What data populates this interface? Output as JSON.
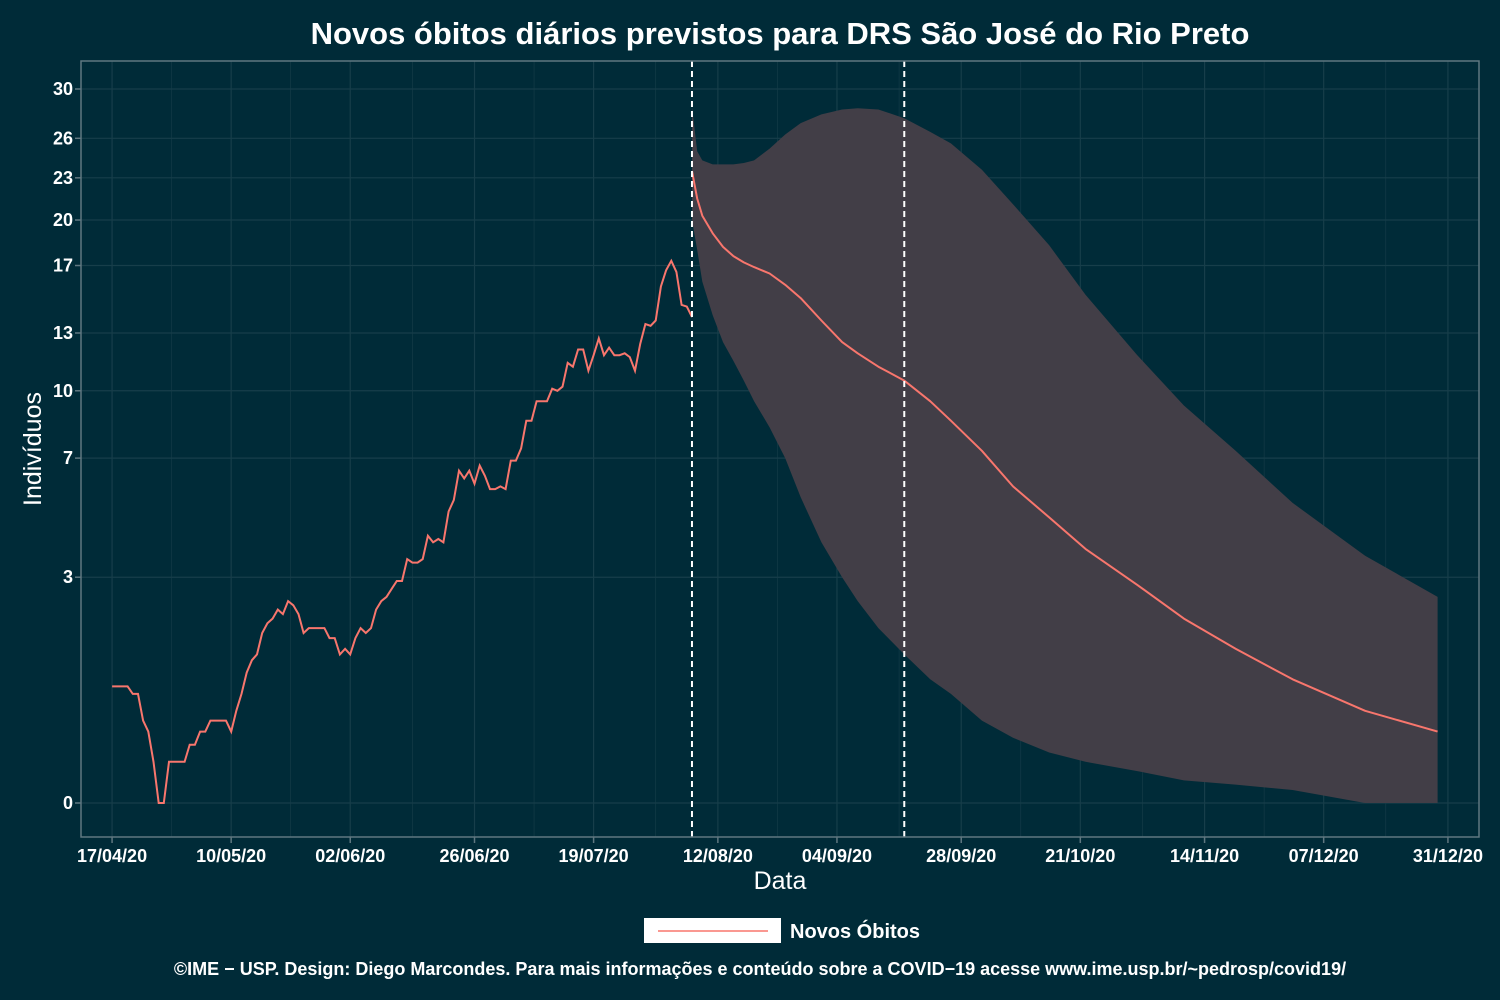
{
  "colors": {
    "background": "#002b38",
    "panel_border": "#5f7780",
    "grid": "#173e4a",
    "band": "#423e47",
    "line": "#f8766d",
    "vline": "#ffffff",
    "legend_key_bg": "#ffffff"
  },
  "chart_data": {
    "type": "line",
    "title": "Novos óbitos diários previstos para DRS São José do Rio Preto",
    "xlabel": "Data",
    "ylabel": "Indivíduos",
    "x_ticks": [
      "17/04/20",
      "10/05/20",
      "02/06/20",
      "26/06/20",
      "19/07/20",
      "12/08/20",
      "04/09/20",
      "28/09/20",
      "21/10/20",
      "14/11/20",
      "07/12/20",
      "31/12/20"
    ],
    "y_ticks": [
      0,
      3,
      7,
      10,
      13,
      17,
      20,
      23,
      26,
      30
    ],
    "y_tick_labels": [
      "0",
      "3",
      "7",
      "10",
      "13",
      "17",
      "20",
      "23",
      "26",
      "30"
    ],
    "y_scale": "sqrt",
    "xlim": [
      "2020-04-11",
      "2021-01-06"
    ],
    "ylim": [
      0,
      31
    ],
    "grid": true,
    "legend": {
      "position": "bottom",
      "entries": [
        "Novos Óbitos"
      ]
    },
    "vertical_lines": [
      "2020-08-07",
      "2020-09-17"
    ],
    "observed": {
      "name": "Novos Óbitos",
      "start_date": "2020-04-17",
      "step_days": 1,
      "values": [
        0.8,
        0.8,
        0.8,
        0.8,
        0.7,
        0.7,
        0.4,
        0.3,
        0.1,
        0.0,
        0.0,
        0.1,
        0.1,
        0.1,
        0.1,
        0.2,
        0.2,
        0.3,
        0.3,
        0.4,
        0.4,
        0.4,
        0.4,
        0.3,
        0.5,
        0.7,
        1.0,
        1.2,
        1.3,
        1.7,
        1.9,
        2.0,
        2.2,
        2.1,
        2.4,
        2.3,
        2.1,
        1.7,
        1.8,
        1.8,
        1.8,
        1.8,
        1.6,
        1.6,
        1.3,
        1.4,
        1.3,
        1.6,
        1.8,
        1.7,
        1.8,
        2.2,
        2.4,
        2.5,
        2.7,
        2.9,
        2.9,
        3.5,
        3.4,
        3.4,
        3.5,
        4.2,
        4.0,
        4.1,
        4.0,
        5.0,
        5.4,
        6.5,
        6.2,
        6.5,
        6.0,
        6.7,
        6.3,
        5.8,
        5.8,
        5.9,
        5.8,
        6.9,
        6.9,
        7.4,
        8.6,
        8.6,
        9.5,
        9.5,
        9.5,
        10.1,
        10.0,
        10.2,
        11.4,
        11.2,
        12.1,
        12.1,
        11.0,
        11.8,
        12.7,
        11.8,
        12.2,
        11.8,
        11.8,
        11.9,
        11.7,
        11.0,
        12.4,
        13.5,
        13.4,
        13.7,
        15.7,
        16.7,
        17.3,
        16.6,
        14.6,
        14.5,
        13.9
      ]
    },
    "forecast": {
      "name": "Novos Óbitos",
      "dates": [
        "2020-08-07",
        "2020-08-08",
        "2020-08-09",
        "2020-08-11",
        "2020-08-13",
        "2020-08-15",
        "2020-08-17",
        "2020-08-19",
        "2020-08-22",
        "2020-08-25",
        "2020-08-28",
        "2020-09-01",
        "2020-09-05",
        "2020-09-08",
        "2020-09-12",
        "2020-09-17",
        "2020-09-22",
        "2020-09-26",
        "2020-10-02",
        "2020-10-08",
        "2020-10-15",
        "2020-10-22",
        "2020-11-01",
        "2020-11-10",
        "2020-11-20",
        "2020-12-01",
        "2020-12-15",
        "2020-12-29"
      ],
      "mean": [
        23.5,
        21.5,
        20.3,
        19.1,
        18.2,
        17.6,
        17.2,
        16.9,
        16.5,
        15.8,
        15.0,
        13.7,
        12.5,
        11.9,
        11.2,
        10.5,
        9.5,
        8.6,
        7.3,
        5.9,
        4.8,
        3.8,
        2.8,
        2.0,
        1.4,
        0.9,
        0.5,
        0.3
      ],
      "lower": [
        20.0,
        18.0,
        16.0,
        14.0,
        12.5,
        11.5,
        10.5,
        9.5,
        8.3,
        7.0,
        5.5,
        4.0,
        3.0,
        2.4,
        1.8,
        1.3,
        0.9,
        0.7,
        0.4,
        0.25,
        0.15,
        0.1,
        0.06,
        0.03,
        0.02,
        0.01,
        0.0,
        0.0
      ],
      "upper": [
        28.5,
        25.0,
        24.3,
        24.0,
        24.0,
        24.0,
        24.1,
        24.3,
        25.2,
        26.3,
        27.2,
        27.9,
        28.3,
        28.4,
        28.3,
        27.6,
        26.5,
        25.6,
        23.6,
        21.1,
        18.3,
        15.2,
        11.8,
        9.3,
        7.3,
        5.3,
        3.6,
        2.5
      ]
    }
  },
  "legend_label": "Novos Óbitos",
  "footer": "©IME − USP. Design: Diego Marcondes. Para mais informações e conteúdo sobre a COVID−19 acesse www.ime.usp.br/~pedrosp/covid19/"
}
